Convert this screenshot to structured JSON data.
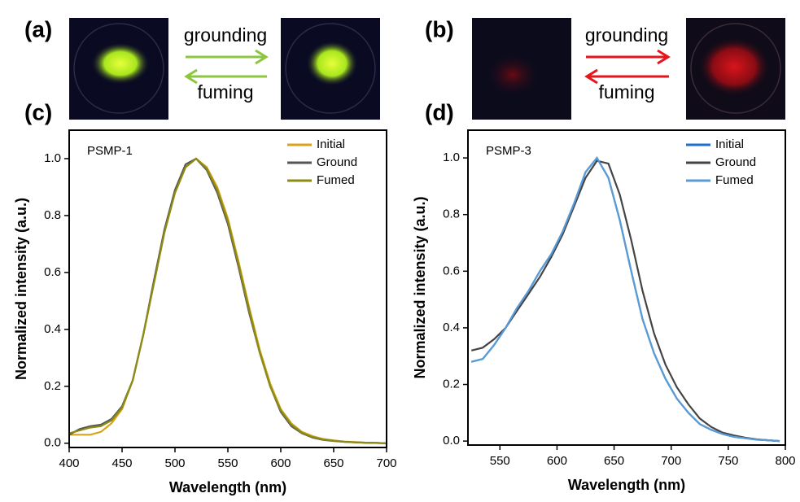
{
  "panels": {
    "a": {
      "label": "(a)",
      "forward": "grounding",
      "backward": "fuming"
    },
    "b": {
      "label": "(b)",
      "forward": "grounding",
      "backward": "fuming"
    }
  },
  "chart_data": [
    {
      "type": "line",
      "panel_label": "(c)",
      "annotation": "PSMP-1",
      "x_label": "Wavelength (nm)",
      "y_label": "Normalized intensity (a.u.)",
      "xlim": [
        400,
        700
      ],
      "xticks": [
        400,
        450,
        500,
        550,
        600,
        650,
        700
      ],
      "ylim": [
        -0.015,
        1.1
      ],
      "yticks": [
        {
          "value": 0,
          "label": "0.0"
        },
        {
          "value": 0.2,
          "label": "0.2"
        },
        {
          "value": 0.4,
          "label": "0.4"
        },
        {
          "value": 0.6,
          "label": "0.6"
        },
        {
          "value": 0.8,
          "label": "0.8"
        },
        {
          "value": 1,
          "label": "1.0"
        }
      ],
      "legend": "upper right",
      "x": [
        400,
        410,
        420,
        430,
        440,
        450,
        460,
        470,
        480,
        490,
        500,
        510,
        520,
        530,
        540,
        550,
        560,
        570,
        580,
        590,
        600,
        610,
        620,
        630,
        640,
        650,
        660,
        670,
        680,
        690,
        700
      ],
      "series": [
        {
          "name": "Initial",
          "color": "#d9a21b",
          "values": [
            0.03,
            0.03,
            0.03,
            0.04,
            0.07,
            0.12,
            0.22,
            0.38,
            0.56,
            0.74,
            0.88,
            0.97,
            1.0,
            0.97,
            0.9,
            0.79,
            0.64,
            0.48,
            0.33,
            0.21,
            0.12,
            0.07,
            0.04,
            0.025,
            0.015,
            0.01,
            0.006,
            0.004,
            0.002,
            0.001,
            0
          ]
        },
        {
          "name": "Ground",
          "color": "#555555",
          "values": [
            0.03,
            0.05,
            0.06,
            0.065,
            0.085,
            0.13,
            0.22,
            0.38,
            0.57,
            0.75,
            0.89,
            0.98,
            1.0,
            0.96,
            0.88,
            0.77,
            0.62,
            0.46,
            0.32,
            0.2,
            0.11,
            0.06,
            0.035,
            0.02,
            0.012,
            0.008,
            0.005,
            0.003,
            0.002,
            0.001,
            0
          ]
        },
        {
          "name": "Fumed",
          "color": "#8c8c12",
          "values": [
            0.035,
            0.045,
            0.055,
            0.06,
            0.08,
            0.125,
            0.22,
            0.38,
            0.56,
            0.74,
            0.88,
            0.97,
            1.0,
            0.965,
            0.89,
            0.78,
            0.63,
            0.47,
            0.32,
            0.2,
            0.115,
            0.065,
            0.037,
            0.022,
            0.013,
            0.009,
            0.005,
            0.003,
            0.002,
            0.001,
            0
          ]
        }
      ]
    },
    {
      "type": "line",
      "panel_label": "(d)",
      "annotation": "PSMP-3",
      "x_label": "Wavelength (nm)",
      "y_label": "Normalized intensity (a.u.)",
      "xlim": [
        522,
        800
      ],
      "xticks": [
        550,
        600,
        650,
        700,
        750,
        800
      ],
      "ylim": [
        -0.014,
        1.098
      ],
      "yticks": [
        {
          "value": 0,
          "label": "0.0"
        },
        {
          "value": 0.2,
          "label": "0.2"
        },
        {
          "value": 0.4,
          "label": "0.4"
        },
        {
          "value": 0.6,
          "label": "0.6"
        },
        {
          "value": 0.8,
          "label": "0.8"
        },
        {
          "value": 1,
          "label": "1.0"
        }
      ],
      "legend": "upper right",
      "x": [
        525,
        535,
        545,
        555,
        565,
        575,
        585,
        595,
        605,
        615,
        625,
        635,
        645,
        655,
        665,
        675,
        685,
        695,
        705,
        715,
        725,
        735,
        745,
        755,
        765,
        775,
        785,
        795
      ],
      "series": [
        {
          "name": "Initial",
          "color": "#1f6fd0",
          "values": [
            0.28,
            0.29,
            0.34,
            0.4,
            0.47,
            0.53,
            0.6,
            0.66,
            0.74,
            0.84,
            0.95,
            1.0,
            0.93,
            0.78,
            0.6,
            0.43,
            0.31,
            0.22,
            0.15,
            0.1,
            0.06,
            0.04,
            0.025,
            0.015,
            0.01,
            0.005,
            0.003,
            0
          ]
        },
        {
          "name": "Ground",
          "color": "#444444",
          "values": [
            0.32,
            0.33,
            0.36,
            0.4,
            0.46,
            0.52,
            0.58,
            0.65,
            0.73,
            0.83,
            0.93,
            0.99,
            0.98,
            0.87,
            0.71,
            0.53,
            0.38,
            0.27,
            0.19,
            0.13,
            0.08,
            0.05,
            0.03,
            0.02,
            0.012,
            0.006,
            0.003,
            0
          ]
        },
        {
          "name": "Fumed",
          "color": "#5b9bd5",
          "values": [
            0.28,
            0.29,
            0.34,
            0.4,
            0.47,
            0.53,
            0.6,
            0.66,
            0.74,
            0.84,
            0.95,
            1.0,
            0.93,
            0.78,
            0.6,
            0.43,
            0.31,
            0.22,
            0.15,
            0.1,
            0.06,
            0.04,
            0.025,
            0.015,
            0.01,
            0.005,
            0.003,
            0
          ]
        }
      ]
    }
  ]
}
